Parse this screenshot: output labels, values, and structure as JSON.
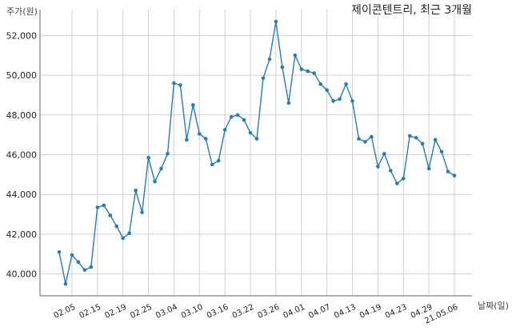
{
  "chart_data": {
    "type": "line",
    "title": "제이콘텐트리, 최근 3개월",
    "ylabel": "주가(원)",
    "xlabel": "날짜(일)",
    "ylim": [
      38900,
      53300
    ],
    "yticks": [
      40000,
      42000,
      44000,
      46000,
      48000,
      50000,
      52000
    ],
    "ytick_labels": [
      "40,000",
      "42,000",
      "44,000",
      "46,000",
      "48,000",
      "50,000",
      "52,000"
    ],
    "xtick_labels": [
      "02.05",
      "02.15",
      "02.19",
      "02.25",
      "03.04",
      "03.10",
      "03.16",
      "03.22",
      "03.26",
      "04.01",
      "04.07",
      "04.13",
      "04.19",
      "04.23",
      "04.29",
      "21.05.06"
    ],
    "xtick_positions": [
      2,
      6,
      10,
      14,
      18,
      22,
      26,
      30,
      34,
      38,
      42,
      46,
      50,
      54,
      58,
      62
    ],
    "grid": true,
    "color": "#2b7bb0",
    "series": [
      {
        "values": [
          41100,
          39500,
          40950,
          40600,
          40200,
          40350,
          43350,
          43450,
          42950,
          42400,
          41800,
          42050,
          44200,
          43100,
          45850,
          44650,
          45300,
          46050,
          49600,
          49500,
          46750,
          48500,
          47050,
          46800,
          45500,
          45700,
          47250,
          47900,
          48000,
          47750,
          47100,
          46800,
          49850,
          50800,
          52700,
          50400,
          48600,
          51000,
          50300,
          50200,
          50100,
          49550,
          49250,
          48700,
          48800,
          49550,
          48700,
          46800,
          46650,
          46900,
          45400,
          46050,
          45200,
          44550,
          44800,
          46950,
          46850,
          46550,
          45300,
          46750,
          46150,
          45150,
          44950
        ]
      }
    ]
  }
}
